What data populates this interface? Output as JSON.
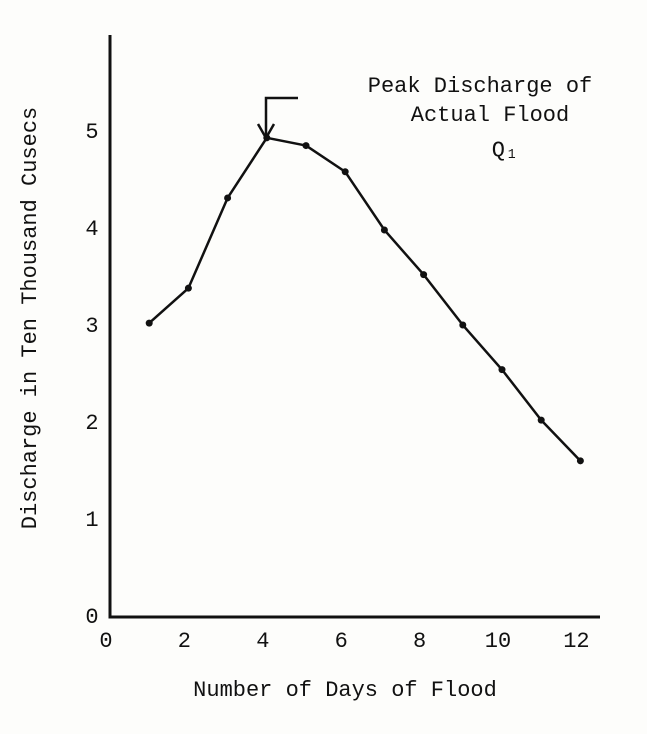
{
  "chart_data": {
    "type": "line",
    "x_label": "Number of Days of Flood",
    "y_label": "Discharge in Ten Thousand Cusecs",
    "annotation": [
      "Peak Discharge of",
      "Actual Flood",
      "Q₁"
    ],
    "x": [
      1,
      2,
      3,
      4,
      5,
      6,
      7,
      8,
      9,
      10,
      11,
      12
    ],
    "series": [
      {
        "name": "Discharge",
        "color": "#111111",
        "values": [
          3.03,
          3.39,
          4.32,
          4.94,
          4.86,
          4.59,
          3.99,
          3.53,
          3.01,
          2.55,
          2.03,
          1.61
        ]
      }
    ],
    "xlim": [
      0,
      12.5
    ],
    "ylim": [
      0,
      6
    ],
    "xticks": [
      0,
      2,
      4,
      6,
      8,
      10,
      12
    ],
    "yticks": [
      0,
      1,
      2,
      3,
      4,
      5
    ],
    "grid": false
  }
}
